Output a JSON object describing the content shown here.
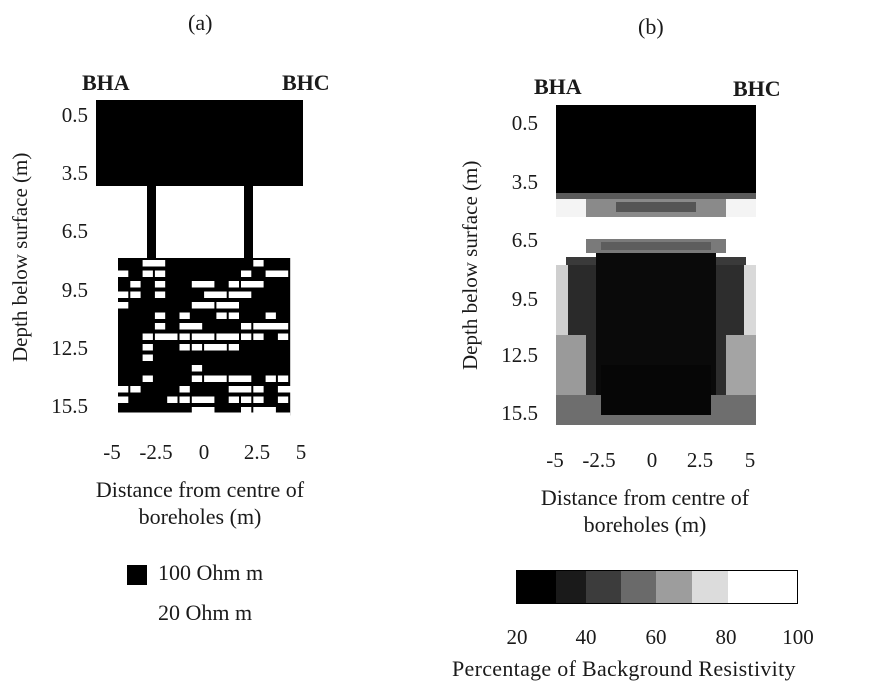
{
  "panels": {
    "a": {
      "label": "(a)",
      "left_borehole": "BHA",
      "right_borehole": "BHC",
      "y_ticks": [
        "0.5",
        "3.5",
        "6.5",
        "9.5",
        "12.5",
        "15.5"
      ],
      "x_ticks": [
        "-5",
        "-2.5",
        "0",
        "2.5",
        "5"
      ],
      "ylabel": "Depth below surface (m)",
      "xlabel_line1": "Distance from centre of",
      "xlabel_line2": "boreholes (m)",
      "legend": [
        {
          "label": "100 Ohm m",
          "color": "#000000"
        },
        {
          "label": "20 Ohm m",
          "color": "#ffffff"
        }
      ]
    },
    "b": {
      "label": "(b)",
      "left_borehole": "BHA",
      "right_borehole": "BHC",
      "y_ticks": [
        "0.5",
        "3.5",
        "6.5",
        "9.5",
        "12.5",
        "15.5"
      ],
      "x_ticks": [
        "-5",
        "-2.5",
        "0",
        "2.5",
        "5"
      ],
      "ylabel": "Depth below surface (m)",
      "xlabel_line1": "Distance from centre of",
      "xlabel_line2": "boreholes (m)",
      "colorbar_ticks": [
        "20",
        "40",
        "60",
        "80",
        "100"
      ],
      "colorbar_label": "Percentage of Background Resistivity"
    }
  },
  "chart_data": [
    {
      "type": "heatmap",
      "title": "(a)",
      "xlabel": "Distance from centre of boreholes (m)",
      "ylabel": "Depth below surface (m)",
      "x_ticks": [
        -5,
        -2.5,
        0,
        2.5,
        5
      ],
      "y_ticks": [
        0.5,
        3.5,
        6.5,
        9.5,
        12.5,
        15.5
      ],
      "xlim": [
        -5,
        5
      ],
      "ylim": [
        16.5,
        -0.5
      ],
      "classes": [
        {
          "label": "100 Ohm m",
          "color": "#000000"
        },
        {
          "label": "20 Ohm m",
          "color": "#ffffff"
        }
      ]
    },
    {
      "type": "heatmap",
      "title": "(b)",
      "xlabel": "Distance from centre of boreholes (m)",
      "ylabel": "Depth below surface (m)",
      "x_ticks": [
        -5,
        -2.5,
        0,
        2.5,
        5
      ],
      "y_ticks": [
        0.5,
        3.5,
        6.5,
        9.5,
        12.5,
        15.5
      ],
      "xlim": [
        -5,
        5
      ],
      "ylim": [
        16.5,
        -0.5
      ],
      "colorbar": {
        "label": "Percentage of Background Resistivity",
        "ticks": [
          20,
          40,
          60,
          80,
          100
        ],
        "range": [
          20,
          100
        ],
        "colors": [
          "#000000",
          "#1a1a1a",
          "#3c3c3c",
          "#6a6a6a",
          "#9d9d9d",
          "#dcdcdc",
          "#ffffff"
        ]
      }
    }
  ]
}
